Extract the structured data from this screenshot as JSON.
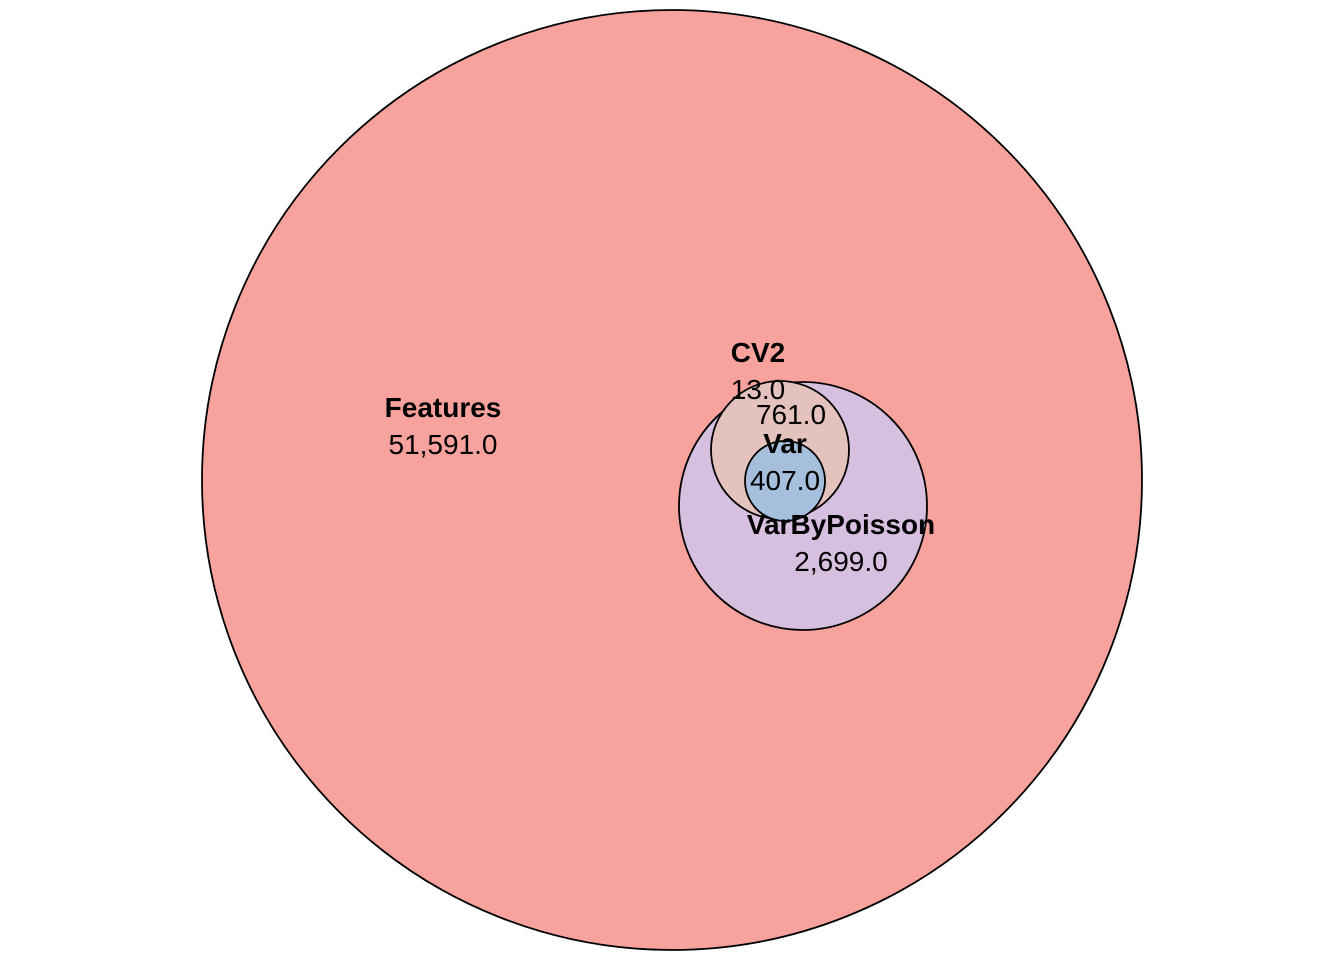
{
  "sets": [
    {
      "name": "Features",
      "count": "51,591.0",
      "color": "#F8A29E"
    },
    {
      "name": "VarByPoisson",
      "count": "2,699.0",
      "color": "#D7BFDF"
    },
    {
      "name": "CV2",
      "count": "13.0",
      "color": "#E4C2BD"
    },
    {
      "name": "Var",
      "count": "407.0",
      "color": "#A6BFDC"
    }
  ],
  "overlaps": [
    {
      "sets": [
        "CV2",
        "VarByPoisson"
      ],
      "count": "761.0"
    }
  ]
}
